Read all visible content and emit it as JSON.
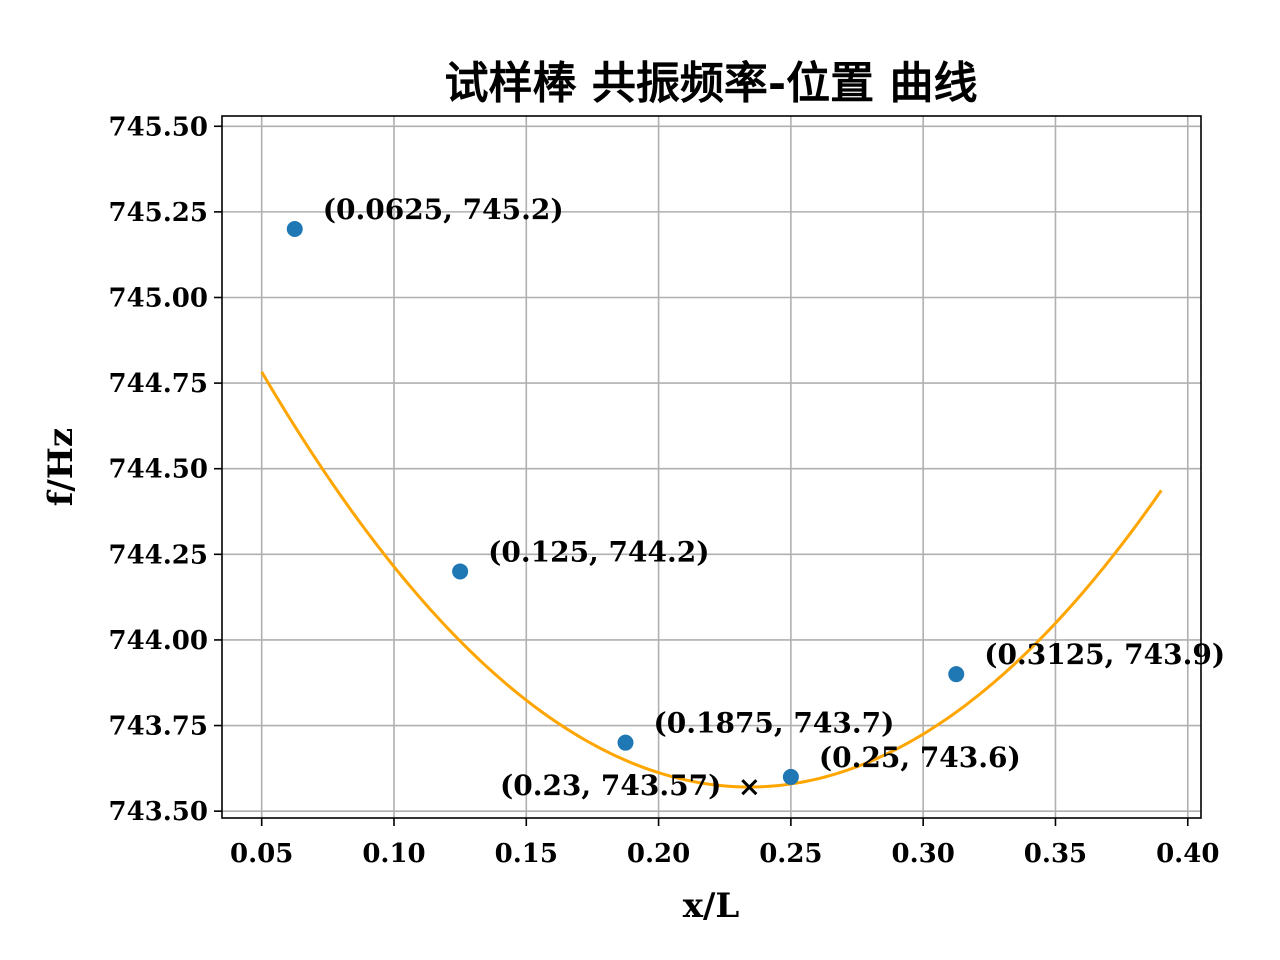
{
  "chart_data": {
    "type": "scatter",
    "title": "试样棒 共振频率-位置 曲线",
    "xlabel": "x/L",
    "ylabel": "f/Hz",
    "xlim": [
      0.035,
      0.405
    ],
    "ylim": [
      743.48,
      745.53
    ],
    "xticks": [
      0.05,
      0.1,
      0.15,
      0.2,
      0.25,
      0.3,
      0.35,
      0.4
    ],
    "xtick_labels": [
      "0.05",
      "0.10",
      "0.15",
      "0.20",
      "0.25",
      "0.30",
      "0.35",
      "0.40"
    ],
    "yticks": [
      743.5,
      743.75,
      744.0,
      744.25,
      744.5,
      744.75,
      745.0,
      745.25,
      745.5
    ],
    "ytick_labels": [
      "743.50",
      "743.75",
      "744.00",
      "744.25",
      "744.50",
      "744.75",
      "745.00",
      "745.25",
      "745.50"
    ],
    "grid": true,
    "points": [
      {
        "x": 0.0625,
        "y": 745.2,
        "label": "(0.0625, 745.2)"
      },
      {
        "x": 0.125,
        "y": 744.2,
        "label": "(0.125, 744.2)"
      },
      {
        "x": 0.1875,
        "y": 743.7,
        "label": "(0.1875, 743.7)"
      },
      {
        "x": 0.25,
        "y": 743.6,
        "label": "(0.25, 743.6)"
      },
      {
        "x": 0.3125,
        "y": 743.9,
        "label": "(0.3125, 743.9)"
      }
    ],
    "minimum": {
      "x": 0.2343,
      "y": 743.57,
      "label": "(0.23, 743.57)"
    },
    "fit_curve": {
      "type": "quadratic",
      "coefficients": [
        35.71,
        -16.73,
        745.53
      ],
      "x_range": [
        0.05,
        0.39
      ],
      "color": "#ffa500"
    },
    "point_color": "#1f77b4",
    "marker_color": "#000000"
  }
}
